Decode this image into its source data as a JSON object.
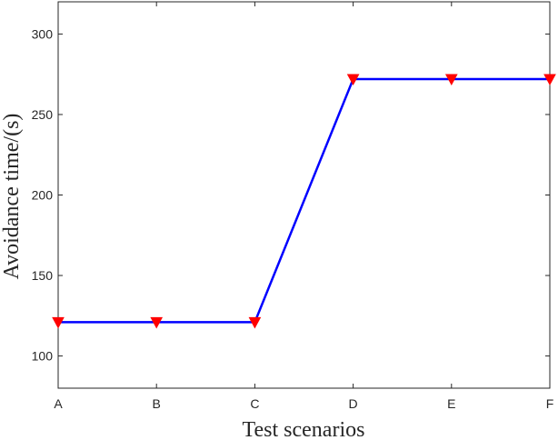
{
  "chart_data": {
    "type": "line",
    "title": "",
    "xlabel": "Test scenarios",
    "ylabel": "Avoidance time/(s)",
    "categories": [
      "A",
      "B",
      "C",
      "D",
      "E",
      "F"
    ],
    "series": [
      {
        "values": [
          121,
          121,
          121,
          272,
          272,
          272
        ],
        "line_color": "#0000ff",
        "marker": "down-triangle",
        "marker_color": "#ff0000"
      }
    ],
    "ylim": [
      80,
      320
    ],
    "yticks": [
      100,
      150,
      200,
      250,
      300
    ],
    "grid": false,
    "legend": "none"
  }
}
